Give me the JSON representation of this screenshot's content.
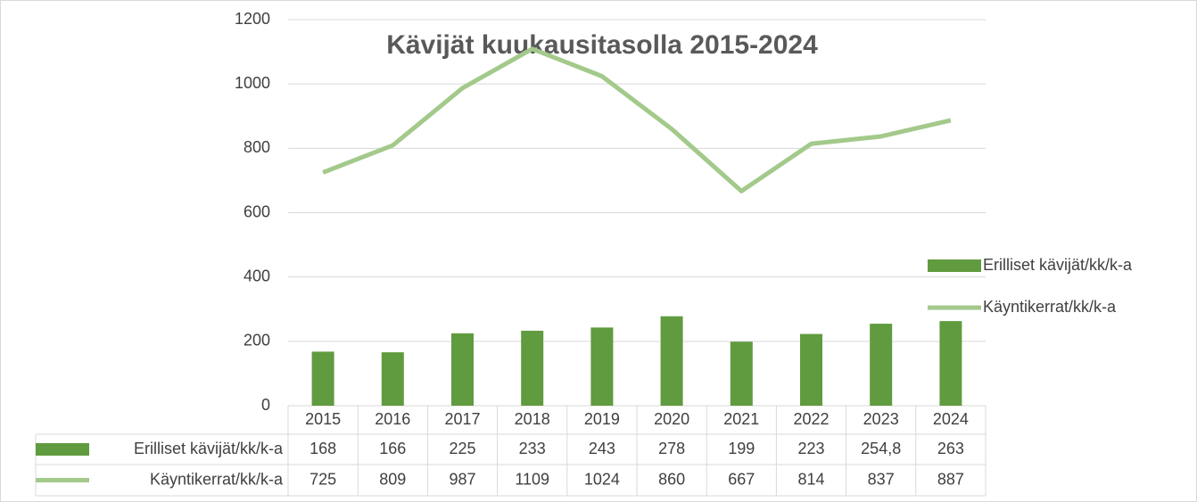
{
  "chart_data": {
    "type": "bar",
    "title": "Kävijät kuukausitasolla 2015-2024",
    "categories": [
      "2015",
      "2016",
      "2017",
      "2018",
      "2019",
      "2020",
      "2021",
      "2022",
      "2023",
      "2024"
    ],
    "series": [
      {
        "name": "Erilliset kävijät/kk/k-a",
        "type": "bar",
        "color": "#609b3f",
        "values": [
          168,
          166,
          225,
          233,
          243,
          278,
          199,
          223,
          254.8,
          263
        ],
        "value_labels": [
          "168",
          "166",
          "225",
          "233",
          "243",
          "278",
          "199",
          "223",
          "254,8",
          "263"
        ]
      },
      {
        "name": "Käyntikerrat/kk/k-a",
        "type": "line",
        "color": "#a3c98b",
        "values": [
          725,
          809,
          987,
          1109,
          1024,
          860,
          667,
          814,
          837,
          887
        ]
      }
    ],
    "ylim": [
      0,
      1200
    ],
    "yticks": [
      0,
      200,
      400,
      600,
      800,
      1000,
      1200
    ],
    "grid": true,
    "legend": "right",
    "data_table": true
  }
}
